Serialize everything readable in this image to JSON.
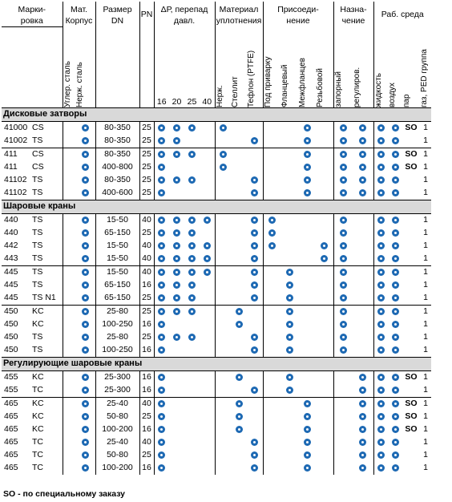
{
  "colors": {
    "dot": "#1d69b3",
    "section_bg": "#d9d9d9"
  },
  "icon": "filled-circle-dot-icon",
  "header": {
    "marking": "Марки-\nровка",
    "material": "Мат.\nКорпус",
    "size": "Размер\nDN",
    "pn": "PN",
    "dp": "ΔР, перепад\nдавл.",
    "seal": "Материал\nуплотнения",
    "conn": "Присоеди-\nнение",
    "purpose": "Назна-\nчение",
    "media": "Раб. среда",
    "mat_sub": [
      "Углер. сталь",
      "Нерж. сталь"
    ],
    "dp_sub": [
      "16",
      "20",
      "25",
      "40"
    ],
    "seal_sub": [
      "Нерж.",
      "Стеллит",
      "Тефлон (PTFE)"
    ],
    "conn_sub": [
      "Под приварку",
      "Фланцевый",
      "Межфланцев",
      "Резьбовой"
    ],
    "purpose_sub": [
      "запорный",
      "регулиров."
    ],
    "media_sub": [
      "жидкость",
      "воздух",
      "пар",
      "газ, PED группа"
    ]
  },
  "sections": [
    {
      "title": "Дисковые затворы",
      "rows": [
        {
          "m": "41000",
          "t": "CS",
          "d": "80-350",
          "pn": "25",
          "mat": [
            0,
            1
          ],
          "dp": [
            1,
            1,
            1,
            0
          ],
          "seal": [
            1,
            0,
            0
          ],
          "conn": [
            0,
            0,
            1,
            0
          ],
          "pur": [
            1,
            1
          ],
          "med": [
            1,
            1
          ],
          "steam": "SO",
          "ped": "1"
        },
        {
          "m": "41002",
          "t": "TS",
          "d": "80-350",
          "pn": "25",
          "mat": [
            0,
            1
          ],
          "dp": [
            1,
            1,
            0,
            0
          ],
          "seal": [
            0,
            0,
            1
          ],
          "conn": [
            0,
            0,
            1,
            0
          ],
          "pur": [
            1,
            1
          ],
          "med": [
            1,
            1
          ],
          "steam": "",
          "ped": "1"
        },
        {
          "m": "411",
          "t": "CS",
          "d": "80-350",
          "pn": "25",
          "mat": [
            0,
            1
          ],
          "dp": [
            1,
            1,
            1,
            0
          ],
          "seal": [
            1,
            0,
            0
          ],
          "conn": [
            0,
            0,
            1,
            0
          ],
          "pur": [
            1,
            1
          ],
          "med": [
            1,
            1
          ],
          "steam": "SO",
          "ped": "1"
        },
        {
          "m": "411",
          "t": "CS",
          "d": "400-800",
          "pn": "25",
          "mat": [
            0,
            1
          ],
          "dp": [
            1,
            0,
            0,
            0
          ],
          "seal": [
            1,
            0,
            0
          ],
          "conn": [
            0,
            0,
            1,
            0
          ],
          "pur": [
            1,
            1
          ],
          "med": [
            1,
            1
          ],
          "steam": "SO",
          "ped": "1"
        },
        {
          "m": "41102",
          "t": "TS",
          "d": "80-350",
          "pn": "25",
          "mat": [
            0,
            1
          ],
          "dp": [
            1,
            1,
            1,
            0
          ],
          "seal": [
            0,
            0,
            1
          ],
          "conn": [
            0,
            0,
            1,
            0
          ],
          "pur": [
            1,
            1
          ],
          "med": [
            1,
            1
          ],
          "steam": "",
          "ped": "1"
        },
        {
          "m": "41102",
          "t": "TS",
          "d": "400-600",
          "pn": "25",
          "mat": [
            0,
            1
          ],
          "dp": [
            1,
            0,
            0,
            0
          ],
          "seal": [
            0,
            0,
            1
          ],
          "conn": [
            0,
            0,
            1,
            0
          ],
          "pur": [
            1,
            1
          ],
          "med": [
            1,
            1
          ],
          "steam": "",
          "ped": "1"
        }
      ]
    },
    {
      "title": "Шаровые краны",
      "rows": [
        {
          "m": "440",
          "t": "TS",
          "d": "15-50",
          "pn": "40",
          "mat": [
            0,
            1
          ],
          "dp": [
            1,
            1,
            1,
            1
          ],
          "seal": [
            0,
            0,
            1
          ],
          "conn": [
            1,
            0,
            0,
            0
          ],
          "pur": [
            1,
            0
          ],
          "med": [
            1,
            1
          ],
          "steam": "",
          "ped": "1"
        },
        {
          "m": "440",
          "t": "TS",
          "d": "65-150",
          "pn": "25",
          "mat": [
            0,
            1
          ],
          "dp": [
            1,
            1,
            1,
            0
          ],
          "seal": [
            0,
            0,
            1
          ],
          "conn": [
            1,
            0,
            0,
            0
          ],
          "pur": [
            1,
            0
          ],
          "med": [
            1,
            1
          ],
          "steam": "",
          "ped": "1"
        },
        {
          "m": "442",
          "t": "TS",
          "d": "15-50",
          "pn": "40",
          "mat": [
            0,
            1
          ],
          "dp": [
            1,
            1,
            1,
            1
          ],
          "seal": [
            0,
            0,
            1
          ],
          "conn": [
            1,
            0,
            0,
            1
          ],
          "pur": [
            1,
            0
          ],
          "med": [
            1,
            1
          ],
          "steam": "",
          "ped": "1"
        },
        {
          "m": "443",
          "t": "TS",
          "d": "15-50",
          "pn": "40",
          "mat": [
            0,
            1
          ],
          "dp": [
            1,
            1,
            1,
            1
          ],
          "seal": [
            0,
            0,
            1
          ],
          "conn": [
            0,
            0,
            0,
            1
          ],
          "pur": [
            1,
            0
          ],
          "med": [
            1,
            1
          ],
          "steam": "",
          "ped": "1"
        },
        {
          "m": "445",
          "t": "TS",
          "d": "15-50",
          "pn": "40",
          "mat": [
            0,
            1
          ],
          "dp": [
            1,
            1,
            1,
            1
          ],
          "seal": [
            0,
            0,
            1
          ],
          "conn": [
            0,
            1,
            0,
            0
          ],
          "pur": [
            1,
            0
          ],
          "med": [
            1,
            1
          ],
          "steam": "",
          "ped": "1"
        },
        {
          "m": "445",
          "t": "TS",
          "d": "65-150",
          "pn": "16",
          "mat": [
            0,
            1
          ],
          "dp": [
            1,
            1,
            1,
            0
          ],
          "seal": [
            0,
            0,
            1
          ],
          "conn": [
            0,
            1,
            0,
            0
          ],
          "pur": [
            1,
            0
          ],
          "med": [
            1,
            1
          ],
          "steam": "",
          "ped": "1"
        },
        {
          "m": "445",
          "t": "TS N1",
          "d": "65-150",
          "pn": "25",
          "mat": [
            0,
            1
          ],
          "dp": [
            1,
            1,
            1,
            0
          ],
          "seal": [
            0,
            0,
            1
          ],
          "conn": [
            0,
            1,
            0,
            0
          ],
          "pur": [
            1,
            0
          ],
          "med": [
            1,
            1
          ],
          "steam": "",
          "ped": "1"
        },
        {
          "m": "450",
          "t": "KC",
          "d": "25-80",
          "pn": "25",
          "mat": [
            0,
            1
          ],
          "dp": [
            1,
            1,
            1,
            0
          ],
          "seal": [
            0,
            1,
            0
          ],
          "conn": [
            0,
            1,
            0,
            0
          ],
          "pur": [
            1,
            0
          ],
          "med": [
            1,
            1
          ],
          "steam": "",
          "ped": "1"
        },
        {
          "m": "450",
          "t": "KC",
          "d": "100-250",
          "pn": "16",
          "mat": [
            0,
            1
          ],
          "dp": [
            1,
            0,
            0,
            0
          ],
          "seal": [
            0,
            1,
            0
          ],
          "conn": [
            0,
            1,
            0,
            0
          ],
          "pur": [
            1,
            0
          ],
          "med": [
            1,
            1
          ],
          "steam": "",
          "ped": "1"
        },
        {
          "m": "450",
          "t": "TS",
          "d": "25-80",
          "pn": "25",
          "mat": [
            0,
            1
          ],
          "dp": [
            1,
            1,
            1,
            0
          ],
          "seal": [
            0,
            0,
            1
          ],
          "conn": [
            0,
            1,
            0,
            0
          ],
          "pur": [
            1,
            0
          ],
          "med": [
            1,
            1
          ],
          "steam": "",
          "ped": "1"
        },
        {
          "m": "450",
          "t": "TS",
          "d": "100-250",
          "pn": "16",
          "mat": [
            0,
            1
          ],
          "dp": [
            1,
            0,
            0,
            0
          ],
          "seal": [
            0,
            0,
            1
          ],
          "conn": [
            0,
            1,
            0,
            0
          ],
          "pur": [
            1,
            0
          ],
          "med": [
            1,
            1
          ],
          "steam": "",
          "ped": "1"
        }
      ]
    },
    {
      "title": "Регулирующие шаровые краны",
      "rows": [
        {
          "m": "455",
          "t": "KC",
          "d": "25-300",
          "pn": "16",
          "mat": [
            0,
            1
          ],
          "dp": [
            1,
            0,
            0,
            0
          ],
          "seal": [
            0,
            1,
            0
          ],
          "conn": [
            0,
            1,
            0,
            0
          ],
          "pur": [
            0,
            1
          ],
          "med": [
            1,
            1
          ],
          "steam": "SO",
          "ped": "1"
        },
        {
          "m": "455",
          "t": "TC",
          "d": "25-300",
          "pn": "16",
          "mat": [
            0,
            1
          ],
          "dp": [
            1,
            0,
            0,
            0
          ],
          "seal": [
            0,
            0,
            1
          ],
          "conn": [
            0,
            1,
            0,
            0
          ],
          "pur": [
            0,
            1
          ],
          "med": [
            1,
            1
          ],
          "steam": "",
          "ped": "1"
        },
        {
          "m": "465",
          "t": "KC",
          "d": "25-40",
          "pn": "40",
          "mat": [
            0,
            1
          ],
          "dp": [
            1,
            0,
            0,
            0
          ],
          "seal": [
            0,
            1,
            0
          ],
          "conn": [
            0,
            0,
            1,
            0
          ],
          "pur": [
            0,
            1
          ],
          "med": [
            1,
            1
          ],
          "steam": "SO",
          "ped": "1"
        },
        {
          "m": "465",
          "t": "KC",
          "d": "50-80",
          "pn": "25",
          "mat": [
            0,
            1
          ],
          "dp": [
            1,
            0,
            0,
            0
          ],
          "seal": [
            0,
            1,
            0
          ],
          "conn": [
            0,
            0,
            1,
            0
          ],
          "pur": [
            0,
            1
          ],
          "med": [
            1,
            1
          ],
          "steam": "SO",
          "ped": "1"
        },
        {
          "m": "465",
          "t": "KC",
          "d": "100-200",
          "pn": "16",
          "mat": [
            0,
            1
          ],
          "dp": [
            1,
            0,
            0,
            0
          ],
          "seal": [
            0,
            1,
            0
          ],
          "conn": [
            0,
            0,
            1,
            0
          ],
          "pur": [
            0,
            1
          ],
          "med": [
            1,
            1
          ],
          "steam": "SO",
          "ped": "1"
        },
        {
          "m": "465",
          "t": "TC",
          "d": "25-40",
          "pn": "40",
          "mat": [
            0,
            1
          ],
          "dp": [
            1,
            0,
            0,
            0
          ],
          "seal": [
            0,
            0,
            1
          ],
          "conn": [
            0,
            0,
            1,
            0
          ],
          "pur": [
            0,
            1
          ],
          "med": [
            1,
            1
          ],
          "steam": "",
          "ped": "1"
        },
        {
          "m": "465",
          "t": "TC",
          "d": "50-80",
          "pn": "25",
          "mat": [
            0,
            1
          ],
          "dp": [
            1,
            0,
            0,
            0
          ],
          "seal": [
            0,
            0,
            1
          ],
          "conn": [
            0,
            0,
            1,
            0
          ],
          "pur": [
            0,
            1
          ],
          "med": [
            1,
            1
          ],
          "steam": "",
          "ped": "1"
        },
        {
          "m": "465",
          "t": "TC",
          "d": "100-200",
          "pn": "16",
          "mat": [
            0,
            1
          ],
          "dp": [
            1,
            0,
            0,
            0
          ],
          "seal": [
            0,
            0,
            1
          ],
          "conn": [
            0,
            0,
            1,
            0
          ],
          "pur": [
            0,
            1
          ],
          "med": [
            1,
            1
          ],
          "steam": "",
          "ped": "1"
        }
      ]
    }
  ],
  "footnote": "SO - по специальному заказу"
}
